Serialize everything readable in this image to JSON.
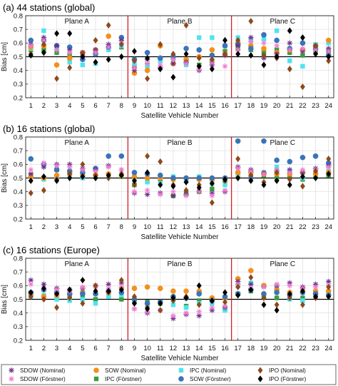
{
  "chart_data": [
    {
      "type": "scatter",
      "title": "(a) 44 stations (global)",
      "xlabel": "Satellite Vehicle Number",
      "ylabel": "Bias [cm]",
      "xlim": [
        0.6,
        24.4
      ],
      "ylim": [
        0.2,
        0.8
      ],
      "yticks": [
        0.2,
        0.3,
        0.4,
        0.5,
        0.6,
        0.7,
        0.8
      ],
      "x": [
        1,
        2,
        3,
        4,
        5,
        6,
        7,
        8,
        9,
        10,
        11,
        12,
        13,
        14,
        15,
        16,
        17,
        18,
        19,
        20,
        21,
        22,
        23,
        24
      ],
      "reference_line": 0.5,
      "planes": [
        "Plane A",
        "Plane B",
        "Plane C"
      ],
      "plane_boundaries": [
        8.5,
        16.5
      ],
      "series": [
        {
          "name": "SDOW (Nominal)",
          "values": [
            0.59,
            0.64,
            0.58,
            0.55,
            0.53,
            0.55,
            0.59,
            0.62,
            0.4,
            0.48,
            0.42,
            0.45,
            0.46,
            0.4,
            0.44,
            0.51,
            0.58,
            0.64,
            0.49,
            0.52,
            0.6,
            0.54,
            0.58,
            0.56
          ]
        },
        {
          "name": "SOW (Nominal)",
          "values": [
            0.57,
            0.58,
            0.44,
            0.49,
            0.53,
            0.55,
            0.65,
            0.64,
            0.38,
            0.4,
            0.58,
            0.45,
            0.48,
            0.5,
            0.55,
            0.52,
            0.6,
            0.58,
            0.56,
            0.53,
            0.55,
            0.55,
            0.58,
            0.62
          ]
        },
        {
          "name": "IPC (Nominal)",
          "values": [
            0.56,
            0.69,
            0.56,
            0.46,
            0.44,
            0.45,
            0.55,
            0.58,
            0.45,
            0.43,
            0.47,
            0.46,
            0.44,
            0.64,
            0.64,
            0.58,
            0.64,
            0.62,
            0.63,
            0.69,
            0.47,
            0.43,
            0.59,
            0.6
          ]
        },
        {
          "name": "IPO (Nominal)",
          "values": [
            0.52,
            0.59,
            0.34,
            0.42,
            0.52,
            0.62,
            0.73,
            0.59,
            0.47,
            0.34,
            0.59,
            0.52,
            0.73,
            0.49,
            0.48,
            0.52,
            0.62,
            0.76,
            0.51,
            0.49,
            0.41,
            0.28,
            0.58,
            0.47
          ]
        },
        {
          "name": "SDOW (Förstner)",
          "values": [
            0.58,
            0.62,
            0.55,
            0.53,
            0.51,
            0.53,
            0.57,
            0.6,
            0.42,
            0.45,
            0.44,
            0.48,
            0.45,
            0.41,
            0.46,
            0.43,
            0.55,
            0.61,
            0.6,
            0.58,
            0.55,
            0.56,
            0.55,
            0.54
          ]
        },
        {
          "name": "IPC (Förstner)",
          "values": [
            0.55,
            0.55,
            0.53,
            0.51,
            0.5,
            0.52,
            0.56,
            0.57,
            0.43,
            0.44,
            0.47,
            0.5,
            0.46,
            0.44,
            0.47,
            0.54,
            0.56,
            0.55,
            0.53,
            0.55,
            0.53,
            0.51,
            0.54,
            0.54
          ]
        },
        {
          "name": "SOW (Förstner)",
          "values": [
            0.62,
            0.62,
            0.58,
            0.57,
            0.48,
            0.52,
            0.57,
            0.64,
            0.48,
            0.53,
            0.49,
            0.5,
            0.56,
            0.55,
            0.51,
            0.58,
            0.59,
            0.56,
            0.66,
            0.62,
            0.56,
            0.6,
            0.56,
            0.51
          ]
        },
        {
          "name": "IPO (Förstner)",
          "values": [
            0.51,
            0.53,
            0.67,
            0.67,
            0.5,
            0.46,
            0.48,
            0.5,
            0.54,
            0.49,
            0.41,
            0.35,
            0.52,
            0.43,
            0.41,
            0.62,
            0.52,
            0.51,
            0.44,
            0.5,
            0.69,
            0.64,
            0.52,
            0.5
          ]
        }
      ]
    },
    {
      "type": "scatter",
      "title": "(b) 16 stations (global)",
      "xlabel": "Satellite Vehicle Number",
      "ylabel": "Bias [cm]",
      "xlim": [
        0.6,
        24.4
      ],
      "ylim": [
        0.2,
        0.8
      ],
      "yticks": [
        0.2,
        0.3,
        0.4,
        0.5,
        0.6,
        0.7,
        0.8
      ],
      "x": [
        1,
        2,
        3,
        4,
        5,
        6,
        7,
        8,
        9,
        10,
        11,
        12,
        13,
        14,
        15,
        16,
        17,
        18,
        19,
        20,
        21,
        22,
        23,
        24
      ],
      "reference_line": 0.5,
      "planes": [
        "Plane A",
        "Plane B",
        "Plane C"
      ],
      "plane_boundaries": [
        8.5,
        16.5
      ],
      "series": [
        {
          "name": "SDOW (Nominal)",
          "values": [
            0.53,
            0.58,
            0.6,
            0.6,
            0.57,
            0.56,
            0.59,
            0.56,
            0.39,
            0.38,
            0.39,
            0.37,
            0.38,
            0.4,
            0.39,
            0.4,
            0.58,
            0.56,
            0.54,
            0.55,
            0.56,
            0.54,
            0.57,
            0.59
          ]
        },
        {
          "name": "SOW (Nominal)",
          "values": [
            0.51,
            0.5,
            0.52,
            0.53,
            0.52,
            0.52,
            0.53,
            0.52,
            0.51,
            0.5,
            0.5,
            0.49,
            0.5,
            0.49,
            0.49,
            0.5,
            0.54,
            0.54,
            0.53,
            0.53,
            0.53,
            0.54,
            0.53,
            0.54
          ]
        },
        {
          "name": "IPC (Nominal)",
          "values": [
            0.51,
            0.49,
            0.5,
            0.52,
            0.5,
            0.51,
            0.51,
            0.52,
            0.49,
            0.47,
            0.46,
            0.51,
            0.48,
            0.51,
            0.46,
            0.45,
            0.53,
            0.55,
            0.54,
            0.58,
            0.55,
            0.5,
            0.53,
            0.55
          ]
        },
        {
          "name": "IPO (Nominal)",
          "values": [
            0.39,
            0.41,
            0.49,
            0.53,
            0.6,
            0.52,
            0.5,
            0.53,
            0.45,
            0.66,
            0.62,
            0.45,
            0.41,
            0.45,
            0.32,
            0.48,
            0.64,
            0.52,
            0.47,
            0.54,
            0.49,
            0.44,
            0.55,
            0.64
          ]
        },
        {
          "name": "SDOW (Förstner)",
          "values": [
            0.56,
            0.61,
            0.59,
            0.58,
            0.56,
            0.55,
            0.58,
            0.56,
            0.4,
            0.41,
            0.38,
            0.4,
            0.37,
            0.4,
            0.37,
            0.41,
            0.57,
            0.55,
            0.53,
            0.56,
            0.54,
            0.56,
            0.56,
            0.58
          ]
        },
        {
          "name": "IPC (Förstner)",
          "values": [
            0.52,
            0.5,
            0.56,
            0.52,
            0.51,
            0.51,
            0.52,
            0.51,
            0.45,
            0.48,
            0.48,
            0.37,
            0.39,
            0.4,
            0.42,
            0.48,
            0.52,
            0.51,
            0.52,
            0.5,
            0.52,
            0.49,
            0.51,
            0.52
          ]
        },
        {
          "name": "SOW (Förstner)",
          "values": [
            0.64,
            0.6,
            0.56,
            0.55,
            0.54,
            0.57,
            0.66,
            0.66,
            0.54,
            0.53,
            0.52,
            0.5,
            0.5,
            0.5,
            0.5,
            0.5,
            0.77,
            0.5,
            0.77,
            0.63,
            0.62,
            0.65,
            0.66,
            0.61
          ]
        },
        {
          "name": "IPO (Förstner)",
          "values": [
            0.48,
            0.51,
            0.48,
            0.5,
            0.51,
            0.5,
            0.52,
            0.52,
            0.48,
            0.54,
            0.45,
            0.44,
            0.47,
            0.43,
            0.46,
            0.49,
            0.5,
            0.48,
            0.45,
            0.48,
            0.45,
            0.51,
            0.5,
            0.53
          ]
        }
      ]
    },
    {
      "type": "scatter",
      "title": "(c) 16 stations (Europe)",
      "xlabel": "Satellite Vehicle Number",
      "ylabel": "Bias [cm]",
      "xlim": [
        0.6,
        24.4
      ],
      "ylim": [
        0.2,
        0.8
      ],
      "yticks": [
        0.2,
        0.3,
        0.4,
        0.5,
        0.6,
        0.7,
        0.8
      ],
      "x": [
        1,
        2,
        3,
        4,
        5,
        6,
        7,
        8,
        9,
        10,
        11,
        12,
        13,
        14,
        15,
        16,
        17,
        18,
        19,
        20,
        21,
        22,
        23,
        24
      ],
      "reference_line": 0.5,
      "planes": [
        "Plane A",
        "Plane B",
        "Plane C"
      ],
      "plane_boundaries": [
        8.5,
        16.5
      ],
      "series": [
        {
          "name": "SDOW (Nominal)",
          "values": [
            0.64,
            0.61,
            0.58,
            0.57,
            0.58,
            0.6,
            0.61,
            0.62,
            0.43,
            0.4,
            0.42,
            0.36,
            0.39,
            0.38,
            0.42,
            0.44,
            0.63,
            0.61,
            0.59,
            0.6,
            0.62,
            0.59,
            0.61,
            0.63
          ]
        },
        {
          "name": "SOW (Nominal)",
          "values": [
            0.53,
            0.52,
            0.53,
            0.54,
            0.55,
            0.54,
            0.55,
            0.58,
            0.58,
            0.59,
            0.58,
            0.56,
            0.56,
            0.56,
            0.51,
            0.51,
            0.65,
            0.71,
            0.6,
            0.57,
            0.55,
            0.58,
            0.56,
            0.56
          ]
        },
        {
          "name": "IPC (Nominal)",
          "values": [
            0.52,
            0.53,
            0.5,
            0.49,
            0.5,
            0.47,
            0.52,
            0.53,
            0.5,
            0.46,
            0.48,
            0.46,
            0.44,
            0.47,
            0.47,
            0.42,
            0.6,
            0.62,
            0.6,
            0.58,
            0.5,
            0.49,
            0.54,
            0.55
          ]
        },
        {
          "name": "IPO (Nominal)",
          "values": [
            0.52,
            0.5,
            0.44,
            0.51,
            0.47,
            0.6,
            0.55,
            0.64,
            0.52,
            0.44,
            0.42,
            0.49,
            0.52,
            0.46,
            0.49,
            0.48,
            0.59,
            0.66,
            0.51,
            0.46,
            0.51,
            0.46,
            0.51,
            0.59
          ]
        },
        {
          "name": "SDOW (Förstner)",
          "values": [
            0.61,
            0.58,
            0.57,
            0.56,
            0.59,
            0.59,
            0.58,
            0.59,
            0.43,
            0.41,
            0.42,
            0.38,
            0.4,
            0.41,
            0.44,
            0.45,
            0.61,
            0.58,
            0.59,
            0.61,
            0.6,
            0.58,
            0.59,
            0.6
          ]
        },
        {
          "name": "IPC (Förstner)",
          "values": [
            0.52,
            0.51,
            0.51,
            0.52,
            0.52,
            0.5,
            0.52,
            0.5,
            0.48,
            0.48,
            0.47,
            0.5,
            0.45,
            0.49,
            0.5,
            0.43,
            0.54,
            0.56,
            0.52,
            0.51,
            0.54,
            0.51,
            0.53,
            0.54
          ]
        },
        {
          "name": "SOW (Förstner)",
          "values": [
            0.55,
            0.57,
            0.55,
            0.54,
            0.54,
            0.54,
            0.56,
            0.55,
            0.5,
            0.47,
            0.48,
            0.52,
            0.51,
            0.54,
            0.49,
            0.52,
            0.54,
            0.57,
            0.54,
            0.55,
            0.53,
            0.55,
            0.54,
            0.53
          ]
        },
        {
          "name": "IPO (Förstner)",
          "values": [
            0.55,
            0.58,
            0.54,
            0.57,
            0.64,
            0.56,
            0.56,
            0.57,
            0.47,
            0.43,
            0.47,
            0.51,
            0.51,
            0.6,
            0.49,
            0.55,
            0.53,
            0.57,
            0.46,
            0.42,
            0.54,
            0.56,
            0.52,
            0.52
          ]
        }
      ]
    }
  ],
  "legend": [
    {
      "name": "SDOW (Nominal)",
      "marker": "asterisk",
      "color": "#6a2c8a"
    },
    {
      "name": "SOW (Nominal)",
      "marker": "circle",
      "color": "#f39019"
    },
    {
      "name": "IPC (Nominal)",
      "marker": "square",
      "color": "#4fe3f0"
    },
    {
      "name": "IPO (Nominal)",
      "marker": "diamond",
      "color": "#8c4a1e"
    },
    {
      "name": "SDOW (Förstner)",
      "marker": "asterisk",
      "color": "#f07ad0"
    },
    {
      "name": "IPC (Förstner)",
      "marker": "square",
      "color": "#3a9d3a"
    },
    {
      "name": "SOW (Förstner)",
      "marker": "circle",
      "color": "#3a74b8"
    },
    {
      "name": "IPO (Förstner)",
      "marker": "diamond",
      "color": "#000000"
    }
  ],
  "colors": {
    "plane_divider": "#d21f1f",
    "reference_line": "#000000",
    "grid": "#dcdcdc"
  }
}
